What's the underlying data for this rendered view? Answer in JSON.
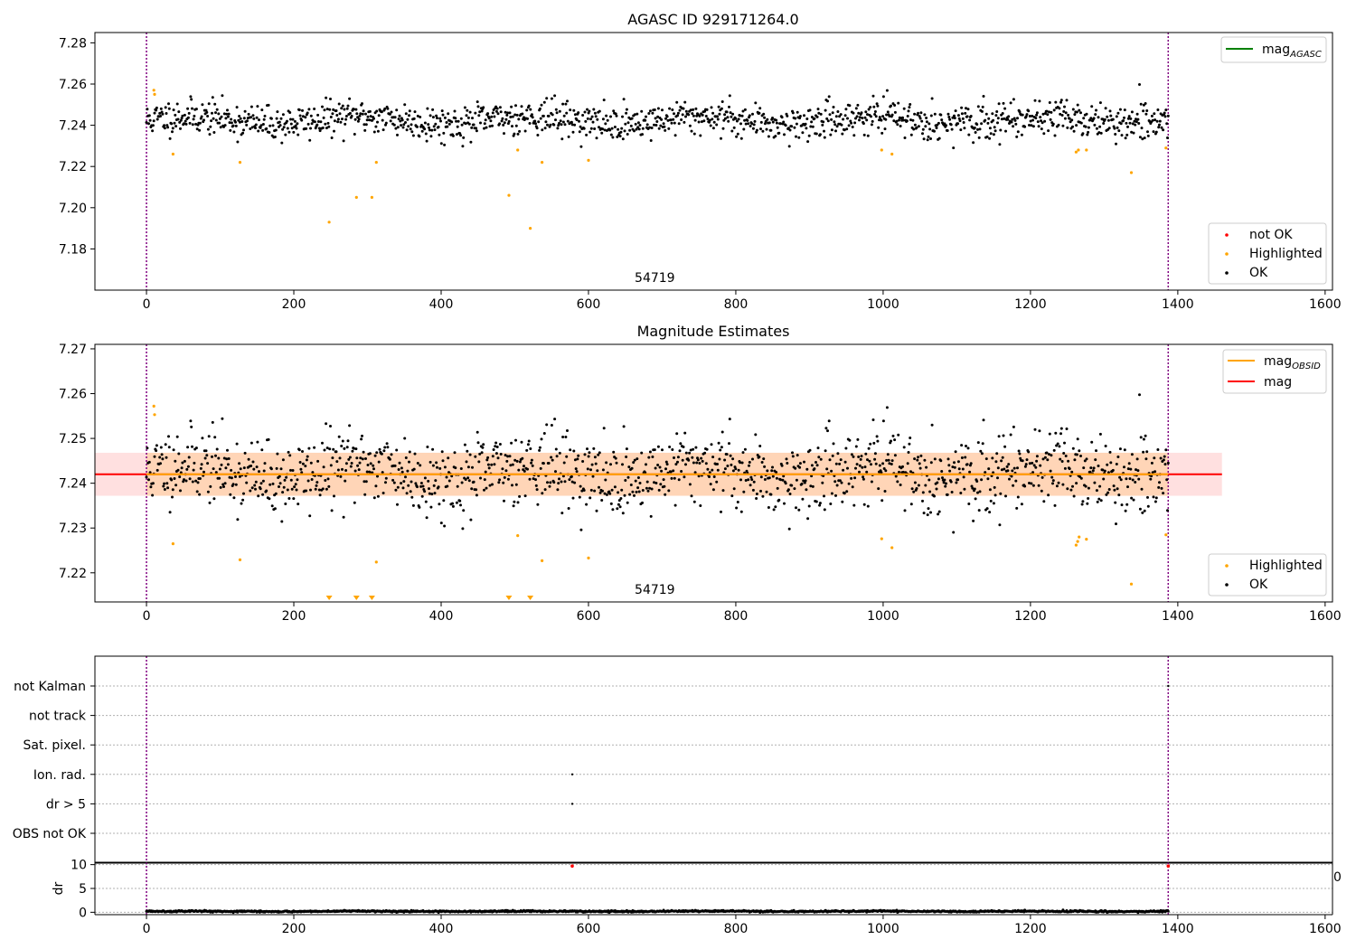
{
  "chart_data": [
    {
      "type": "scatter",
      "title": "AGASC ID 929171264.0",
      "xlim": [
        -70,
        1610
      ],
      "ylim": [
        7.16,
        7.285
      ],
      "xticks": [
        0,
        200,
        400,
        600,
        800,
        1000,
        1200,
        1400,
        1600
      ],
      "yticks": [
        7.18,
        7.2,
        7.22,
        7.24,
        7.26,
        7.28
      ],
      "vlines": [
        0,
        1387
      ],
      "obsid_label": "54719",
      "obsid_label_x": 690,
      "legend_lines": [
        {
          "label": "mag",
          "sub": "AGASC",
          "color": "#008000"
        }
      ],
      "legend_points": [
        {
          "label": "not OK",
          "color": "#ff0000"
        },
        {
          "label": "Highlighted",
          "color": "#ffa500"
        },
        {
          "label": "OK",
          "color": "#000000"
        }
      ],
      "ok_series": {
        "n": 1390,
        "x_range": [
          0,
          1387
        ],
        "center": 7.2425,
        "spread": 0.0075,
        "seed": 11
      },
      "highlighted": [
        [
          10,
          7.257
        ],
        [
          11,
          7.255
        ],
        [
          36,
          7.226
        ],
        [
          127,
          7.222
        ],
        [
          248,
          7.193
        ],
        [
          285,
          7.205
        ],
        [
          306,
          7.205
        ],
        [
          312,
          7.222
        ],
        [
          492,
          7.206
        ],
        [
          504,
          7.228
        ],
        [
          521,
          7.19
        ],
        [
          537,
          7.222
        ],
        [
          600,
          7.223
        ],
        [
          998,
          7.228
        ],
        [
          1012,
          7.226
        ],
        [
          1262,
          7.227
        ],
        [
          1265,
          7.228
        ],
        [
          1276,
          7.228
        ],
        [
          1337,
          7.217
        ],
        [
          1384,
          7.229
        ]
      ]
    },
    {
      "type": "scatter",
      "title": "Magnitude Estimates",
      "xlim": [
        -70,
        1610
      ],
      "ylim": [
        7.2135,
        7.271
      ],
      "xticks": [
        0,
        200,
        400,
        600,
        800,
        1000,
        1200,
        1400,
        1600
      ],
      "yticks": [
        7.22,
        7.23,
        7.24,
        7.25,
        7.26,
        7.27
      ],
      "vlines": [
        0,
        1387
      ],
      "obsid_label": "54719",
      "obsid_label_x": 690,
      "mag": 7.242,
      "mag_band": [
        7.2372,
        7.2468
      ],
      "mag_band_xrange": [
        -70,
        1460
      ],
      "obsid_band_xrange": [
        0,
        1387
      ],
      "legend_lines": [
        {
          "label": "mag",
          "sub": "OBSID",
          "color": "#ffa500"
        },
        {
          "label": "mag",
          "sub": "",
          "color": "#ff0000"
        }
      ],
      "legend_points": [
        {
          "label": "Highlighted",
          "color": "#ffa500"
        },
        {
          "label": "OK",
          "color": "#000000"
        }
      ],
      "ok_series": {
        "n": 1390,
        "x_range": [
          0,
          1387
        ],
        "center": 7.2425,
        "spread": 0.0075,
        "seed": 11
      },
      "highlighted": [
        [
          10,
          7.2572
        ],
        [
          11,
          7.2553
        ],
        [
          36,
          7.2265
        ],
        [
          127,
          7.2229
        ],
        [
          312,
          7.2224
        ],
        [
          504,
          7.2283
        ],
        [
          537,
          7.2227
        ],
        [
          600,
          7.2233
        ],
        [
          998,
          7.2276
        ],
        [
          1012,
          7.2256
        ],
        [
          1262,
          7.2262
        ],
        [
          1264,
          7.227
        ],
        [
          1266,
          7.228
        ],
        [
          1276,
          7.2275
        ],
        [
          1337,
          7.2175
        ],
        [
          1384,
          7.2285
        ]
      ],
      "below_markers": [
        248,
        285,
        306,
        492,
        521
      ]
    },
    {
      "type": "scatter",
      "title": "",
      "categories": [
        "not Kalman",
        "not track",
        "Sat. pixel.",
        "Ion. rad.",
        "dr > 5",
        "OBS not OK"
      ],
      "flag_points": [
        [
          578,
          "Ion. rad."
        ],
        [
          578,
          "dr > 5"
        ],
        [
          1387,
          "not Kalman"
        ]
      ],
      "vlines": [
        0,
        1387
      ],
      "xlim": [
        -70,
        1610
      ]
    },
    {
      "type": "scatter",
      "ylabel": "dr",
      "xlim": [
        -70,
        1610
      ],
      "ylim": [
        -0.5,
        10.5
      ],
      "xticks": [
        0,
        200,
        400,
        600,
        800,
        1000,
        1200,
        1400,
        1600
      ],
      "yticks": [
        0,
        5,
        10
      ],
      "vlines": [
        0,
        1387
      ],
      "red_points": [
        [
          578,
          9.7
        ],
        [
          1387,
          9.7
        ]
      ],
      "ok_series": {
        "n": 1390,
        "x_range": [
          0,
          1387
        ],
        "center": 0.2,
        "spread": 0.15,
        "seed": 5
      },
      "overflow_tick": "0"
    }
  ]
}
